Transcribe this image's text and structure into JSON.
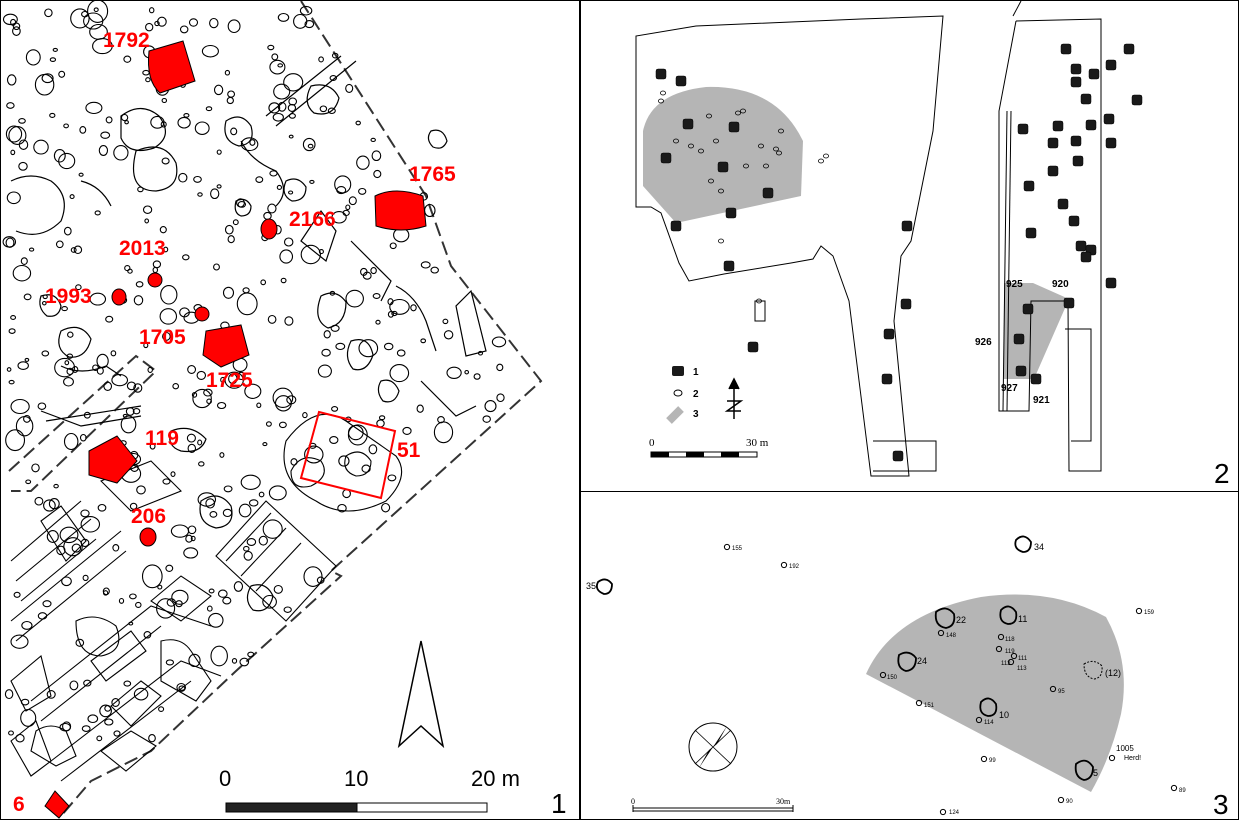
{
  "panels": {
    "p1": {
      "number": "1",
      "features": [
        {
          "label": "1792"
        },
        {
          "label": "1765"
        },
        {
          "label": "2166"
        },
        {
          "label": "2013"
        },
        {
          "label": "1993"
        },
        {
          "label": "1705"
        },
        {
          "label": "1725"
        },
        {
          "label": "119"
        },
        {
          "label": "51"
        },
        {
          "label": "206"
        },
        {
          "label": "6"
        }
      ],
      "scale": {
        "t0": "0",
        "t10": "10",
        "t20": "20 m"
      }
    },
    "p2": {
      "number": "2",
      "post_labels": [
        "925",
        "920",
        "926",
        "927",
        "921"
      ],
      "legend": [
        {
          "label": "1"
        },
        {
          "label": "2"
        },
        {
          "label": "3"
        }
      ],
      "scale": {
        "t0": "0",
        "t30": "30 m"
      }
    },
    "p3": {
      "number": "3",
      "labels": [
        "155",
        "192",
        "34",
        "35",
        "159",
        "22",
        "11",
        "148",
        "118",
        "119",
        "111",
        "112",
        "113",
        "24",
        "150",
        "(12)",
        "95",
        "151",
        "10",
        "114",
        "1005",
        "Herd!",
        "99",
        "5",
        "89",
        "90",
        "124"
      ],
      "scale": {
        "t0": "0",
        "t30": "30m"
      }
    }
  },
  "colors": {
    "feature_red": "#ff0000",
    "shade_grey": "#b5b5b5",
    "post_black": "#1a1a1a"
  }
}
